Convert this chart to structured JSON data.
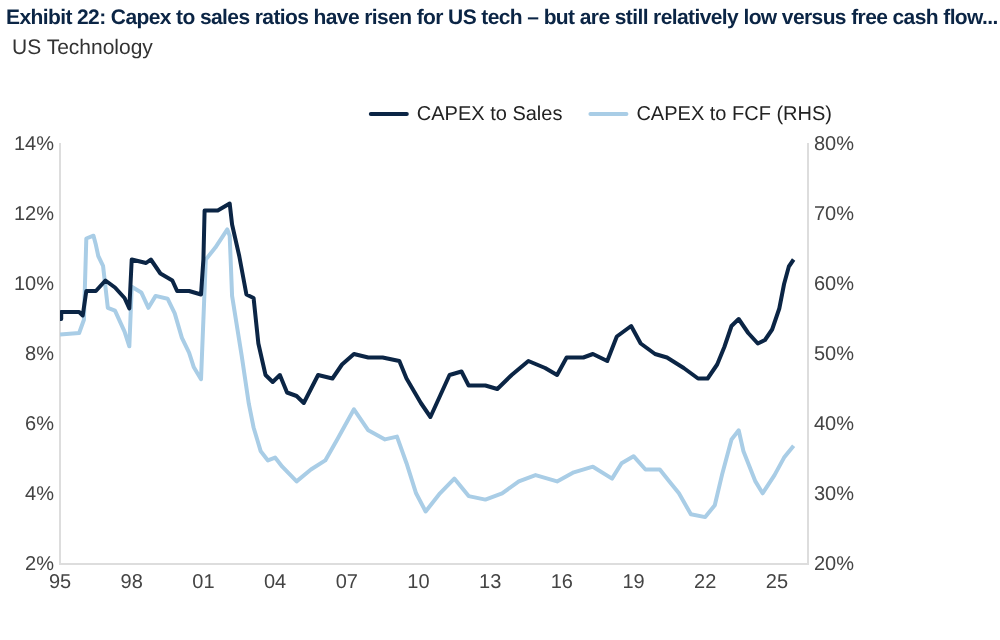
{
  "chart_data": {
    "type": "line",
    "title": "Exhibit 22: Capex to sales ratios have risen for US tech – but are still relatively low versus free cash flow...",
    "subtitle": "US Technology",
    "xlim": [
      1995,
      2026.3
    ],
    "xticks": [
      {
        "value": 1995,
        "label": "95"
      },
      {
        "value": 1998,
        "label": "98"
      },
      {
        "value": 2001,
        "label": "01"
      },
      {
        "value": 2004,
        "label": "04"
      },
      {
        "value": 2007,
        "label": "07"
      },
      {
        "value": 2010,
        "label": "10"
      },
      {
        "value": 2013,
        "label": "13"
      },
      {
        "value": 2016,
        "label": "16"
      },
      {
        "value": 2019,
        "label": "19"
      },
      {
        "value": 2022,
        "label": "22"
      },
      {
        "value": 2025,
        "label": "25"
      }
    ],
    "ylim": [
      2,
      14
    ],
    "yticks": [
      {
        "value": 2,
        "label": "2%"
      },
      {
        "value": 4,
        "label": "4%"
      },
      {
        "value": 6,
        "label": "6%"
      },
      {
        "value": 8,
        "label": "8%"
      },
      {
        "value": 10,
        "label": "10%"
      },
      {
        "value": 12,
        "label": "12%"
      },
      {
        "value": 14,
        "label": "14%"
      }
    ],
    "y2lim": [
      20,
      80
    ],
    "y2ticks": [
      {
        "value": 20,
        "label": "20%"
      },
      {
        "value": 30,
        "label": "30%"
      },
      {
        "value": 40,
        "label": "40%"
      },
      {
        "value": 50,
        "label": "50%"
      },
      {
        "value": 60,
        "label": "60%"
      },
      {
        "value": 70,
        "label": "70%"
      },
      {
        "value": 80,
        "label": "80%"
      }
    ],
    "grid": false,
    "legend": "top right",
    "marker": "none",
    "line_style": "solid",
    "series": [
      {
        "name": "CAPEX to Sales",
        "color": "#0b2545",
        "x": [
          1995.0,
          1995.05,
          1995.8,
          1995.95,
          1996.1,
          1996.5,
          1996.9,
          1997.3,
          1997.7,
          1997.9,
          1998.0,
          1998.6,
          1998.8,
          1999.2,
          1999.7,
          1999.9,
          2000.4,
          2000.9,
          2001.0,
          2001.05,
          2001.6,
          2002.1,
          2002.2,
          2002.5,
          2002.8,
          2003.1,
          2003.3,
          2003.6,
          2003.9,
          2004.2,
          2004.5,
          2004.9,
          2005.2,
          2005.5,
          2005.8,
          2006.4,
          2006.8,
          2007.3,
          2007.9,
          2008.5,
          2009.2,
          2009.5,
          2010.1,
          2010.5,
          2010.9,
          2011.3,
          2011.8,
          2012.1,
          2012.8,
          2013.3,
          2013.9,
          2014.6,
          2015.3,
          2015.8,
          2016.2,
          2016.9,
          2017.3,
          2017.9,
          2018.3,
          2018.9,
          2019.3,
          2019.9,
          2020.4,
          2021.1,
          2021.7,
          2022.1,
          2022.5,
          2022.8,
          2023.1,
          2023.4,
          2023.8,
          2024.2,
          2024.5,
          2024.8,
          2025.1,
          2025.3,
          2025.5,
          2025.7
        ],
        "values": [
          9.0,
          9.2,
          9.2,
          9.1,
          9.8,
          9.8,
          10.1,
          9.9,
          9.6,
          9.3,
          10.7,
          10.6,
          10.7,
          10.3,
          10.1,
          9.8,
          9.8,
          9.7,
          10.7,
          12.1,
          12.1,
          12.3,
          11.7,
          10.8,
          9.7,
          9.6,
          8.3,
          7.4,
          7.2,
          7.4,
          6.9,
          6.8,
          6.6,
          7.0,
          7.4,
          7.3,
          7.7,
          8.0,
          7.9,
          7.9,
          7.8,
          7.3,
          6.6,
          6.2,
          6.8,
          7.4,
          7.5,
          7.1,
          7.1,
          7.0,
          7.4,
          7.8,
          7.6,
          7.4,
          7.9,
          7.9,
          8.0,
          7.8,
          8.5,
          8.8,
          8.3,
          8.0,
          7.9,
          7.6,
          7.3,
          7.3,
          7.7,
          8.2,
          8.8,
          9.0,
          8.6,
          8.3,
          8.4,
          8.7,
          9.3,
          10.0,
          10.5,
          10.7
        ]
      },
      {
        "name": "CAPEX to FCF (RHS)",
        "color": "#a9cde6",
        "axis": "y2",
        "x": [
          1995.0,
          1995.8,
          1996.0,
          1996.1,
          1996.4,
          1996.5,
          1996.6,
          1996.8,
          1997.0,
          1997.3,
          1997.7,
          1997.9,
          1998.0,
          1998.4,
          1998.7,
          1999.0,
          1999.5,
          1999.8,
          2000.1,
          2000.4,
          2000.6,
          2000.9,
          2001.1,
          2001.5,
          2002.0,
          2002.1,
          2002.2,
          2002.6,
          2002.9,
          2003.1,
          2003.4,
          2003.7,
          2004.0,
          2004.3,
          2004.9,
          2005.5,
          2006.1,
          2006.6,
          2007.3,
          2007.9,
          2008.6,
          2009.1,
          2009.5,
          2009.9,
          2010.3,
          2010.9,
          2011.5,
          2012.1,
          2012.8,
          2013.5,
          2014.2,
          2014.9,
          2015.8,
          2016.5,
          2017.3,
          2018.1,
          2018.5,
          2019.0,
          2019.5,
          2020.1,
          2020.5,
          2020.9,
          2021.4,
          2022.0,
          2022.4,
          2022.7,
          2023.1,
          2023.4,
          2023.6,
          2024.1,
          2024.4,
          2024.9,
          2025.3,
          2025.7
        ],
        "values": [
          52.8,
          53.0,
          54.9,
          66.5,
          66.9,
          65.6,
          64.0,
          62.6,
          56.6,
          56.2,
          53.2,
          51.1,
          59.6,
          58.8,
          56.6,
          58.3,
          57.9,
          55.8,
          52.3,
          50.2,
          48.1,
          46.4,
          63.5,
          65.2,
          67.8,
          66.9,
          58.3,
          49.8,
          42.9,
          39.5,
          36.1,
          34.8,
          35.2,
          33.9,
          31.8,
          33.5,
          34.8,
          37.8,
          42.1,
          39.1,
          37.8,
          38.2,
          34.4,
          30.1,
          27.5,
          30.1,
          32.2,
          29.7,
          29.2,
          30.1,
          31.8,
          32.7,
          31.8,
          33.1,
          33.9,
          32.2,
          34.4,
          35.4,
          33.5,
          33.5,
          31.8,
          30.1,
          27.1,
          26.7,
          28.4,
          32.7,
          37.8,
          39.1,
          36.1,
          31.8,
          30.1,
          32.7,
          35.2,
          36.9
        ]
      }
    ]
  }
}
